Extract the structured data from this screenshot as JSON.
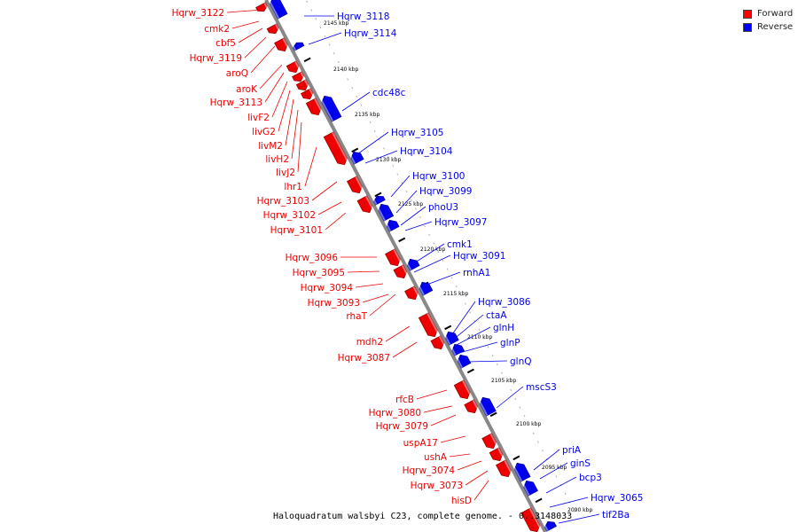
{
  "caption": "Haloquadratum walsbyi C23, complete genome. - 0..3148033",
  "legend": [
    {
      "label": "Forward",
      "color": "#ff0000"
    },
    {
      "label": "Reverse",
      "color": "#0000ff"
    }
  ],
  "colors": {
    "forward": "#ee0000",
    "forward_dark": "#990000",
    "reverse": "#0000ee",
    "reverse_dark": "#000099",
    "backbone": "#888888"
  },
  "tick_labels": [
    "2145 kbp",
    "2140 kbp",
    "2135 kbp",
    "2130 kbp",
    "2125 kbp",
    "2120 kbp",
    "2115 kbp",
    "2110 kbp",
    "2105 kbp",
    "2100 kbp",
    "2095 kbp",
    "2090 kbp"
  ],
  "forward_genes": [
    "Hqrw_3122",
    "cmk2",
    "cbf5",
    "Hqrw_3119",
    "aroQ",
    "aroK",
    "Hqrw_3113",
    "livF2",
    "livG2",
    "livM2",
    "livH2",
    "livJ2",
    "lhr1",
    "Hqrw_3103",
    "Hqrw_3102",
    "Hqrw_3101",
    "Hqrw_3096",
    "Hqrw_3095",
    "Hqrw_3094",
    "Hqrw_3093",
    "rhaT",
    "mdh2",
    "Hqrw_3087",
    "rfcB",
    "Hqrw_3080",
    "Hqrw_3079",
    "uspA17",
    "ushA",
    "Hqrw_3074",
    "Hqrw_3073",
    "hisD"
  ],
  "reverse_genes": [
    "Hqrw_3118",
    "Hqrw_3114",
    "cdc48c",
    "Hqrw_3105",
    "Hqrw_3104",
    "Hqrw_3100",
    "Hqrw_3099",
    "phoU3",
    "Hqrw_3097",
    "cmk1",
    "Hqrw_3091",
    "rnhA1",
    "Hqrw_3086",
    "ctaA",
    "glnH",
    "glnP",
    "glnQ",
    "mscS3",
    "priA",
    "ginS",
    "bcp3",
    "Hqrw_3065",
    "tif2Ba"
  ]
}
